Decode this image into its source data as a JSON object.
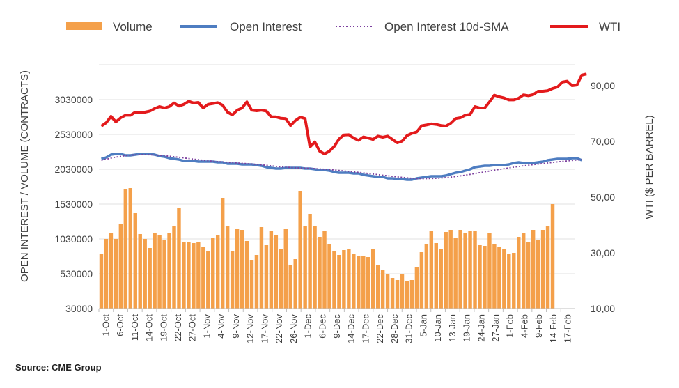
{
  "source": "Source: CME Group",
  "chart_data": {
    "type": "bar+line",
    "title": "",
    "legend": {
      "placement": "top",
      "entries": [
        {
          "name": "Volume",
          "kind": "bar",
          "color": "#F4A04A"
        },
        {
          "name": "Open Interest",
          "kind": "line",
          "color": "#4E7DC1"
        },
        {
          "name": "Open Interest 10d-SMA",
          "kind": "dotted-line",
          "color": "#7B3E9E"
        },
        {
          "name": "WTI",
          "kind": "line",
          "color": "#E31A1C"
        }
      ]
    },
    "y_left": {
      "label": "OPEN INTEREST / VOLUME (CONTRACTS)",
      "range": [
        30000,
        3530000
      ],
      "ticks": [
        "30000",
        "530000",
        "1030000",
        "1530000",
        "2030000",
        "2530000",
        "3030000"
      ]
    },
    "y_right": {
      "label": "WTI ($ PER BARREL)",
      "range": [
        10,
        97.5
      ],
      "ticks": [
        "10,00",
        "30,00",
        "50,00",
        "70,00",
        "90,00"
      ]
    },
    "x_ticks": [
      "1-Oct",
      "6-Oct",
      "11-Oct",
      "14-Oct",
      "19-Oct",
      "22-Oct",
      "27-Oct",
      "1-Nov",
      "4-Nov",
      "9-Nov",
      "12-Nov",
      "17-Nov",
      "22-Nov",
      "26-Nov",
      "1-Dec",
      "6-Dec",
      "9-Dec",
      "14-Dec",
      "17-Dec",
      "22-Dec",
      "28-Dec",
      "31-Dec",
      "5-Jan",
      "10-Jan",
      "13-Jan",
      "19-Jan",
      "24-Jan",
      "27-Jan",
      "1-Feb",
      "4-Feb",
      "9-Feb",
      "14-Feb",
      "17-Feb"
    ],
    "gridlines": true,
    "series": [
      {
        "name": "Volume",
        "axis": "left",
        "type": "bar",
        "values": [
          820000,
          1030000,
          1120000,
          1030000,
          1250000,
          1740000,
          1760000,
          1400000,
          1100000,
          1030000,
          900000,
          1110000,
          1080000,
          1010000,
          1110000,
          1220000,
          1470000,
          990000,
          980000,
          970000,
          980000,
          920000,
          850000,
          1040000,
          1080000,
          1620000,
          1220000,
          850000,
          1170000,
          1160000,
          1000000,
          730000,
          800000,
          1200000,
          940000,
          1140000,
          1080000,
          880000,
          1170000,
          650000,
          740000,
          1720000,
          1220000,
          1390000,
          1220000,
          1060000,
          1140000,
          960000,
          860000,
          800000,
          870000,
          890000,
          820000,
          790000,
          790000,
          770000,
          890000,
          660000,
          590000,
          520000,
          470000,
          440000,
          520000,
          420000,
          440000,
          620000,
          840000,
          960000,
          1140000,
          970000,
          890000,
          1130000,
          1160000,
          1050000,
          1160000,
          1120000,
          1140000,
          1140000,
          950000,
          930000,
          1120000,
          960000,
          910000,
          880000,
          820000,
          830000,
          1060000,
          1110000,
          980000,
          1160000,
          1010000,
          1160000,
          1220000,
          1530000
        ]
      },
      {
        "name": "Open Interest",
        "axis": "left",
        "type": "line",
        "values": [
          2180000,
          2200000,
          2240000,
          2250000,
          2250000,
          2230000,
          2230000,
          2240000,
          2250000,
          2250000,
          2250000,
          2240000,
          2220000,
          2210000,
          2190000,
          2180000,
          2170000,
          2150000,
          2150000,
          2150000,
          2140000,
          2140000,
          2140000,
          2140000,
          2130000,
          2130000,
          2110000,
          2110000,
          2110000,
          2100000,
          2100000,
          2100000,
          2090000,
          2080000,
          2060000,
          2050000,
          2040000,
          2040000,
          2050000,
          2050000,
          2050000,
          2050000,
          2040000,
          2040000,
          2030000,
          2020000,
          2020000,
          2010000,
          1990000,
          1980000,
          1980000,
          1980000,
          1970000,
          1970000,
          1950000,
          1940000,
          1930000,
          1920000,
          1920000,
          1900000,
          1900000,
          1890000,
          1890000,
          1880000,
          1880000,
          1900000,
          1910000,
          1920000,
          1930000,
          1930000,
          1930000,
          1940000,
          1960000,
          1980000,
          1990000,
          2010000,
          2030000,
          2060000,
          2070000,
          2080000,
          2080000,
          2090000,
          2090000,
          2090000,
          2100000,
          2120000,
          2130000,
          2120000,
          2120000,
          2120000,
          2130000,
          2140000,
          2160000,
          2170000,
          2180000,
          2180000,
          2180000,
          2190000,
          2190000,
          2160000
        ]
      },
      {
        "name": "Open Interest 10d-SMA",
        "axis": "left",
        "type": "dotted-line",
        "values": [
          2160000,
          2175000,
          2190000,
          2205000,
          2215000,
          2225000,
          2232000,
          2238000,
          2240000,
          2240000,
          2238000,
          2235000,
          2230000,
          2225000,
          2218000,
          2210000,
          2202000,
          2193000,
          2185000,
          2176000,
          2168000,
          2160000,
          2153000,
          2147000,
          2141000,
          2136000,
          2131000,
          2126000,
          2121000,
          2116000,
          2111000,
          2106000,
          2100000,
          2094000,
          2087000,
          2080000,
          2072000,
          2065000,
          2060000,
          2056000,
          2052000,
          2049000,
          2046000,
          2043000,
          2039000,
          2035000,
          2031000,
          2026000,
          2020000,
          2013000,
          2006000,
          2000000,
          1993000,
          1986000,
          1978000,
          1970000,
          1962000,
          1953000,
          1945000,
          1937000,
          1929000,
          1921000,
          1914000,
          1907000,
          1901000,
          1897000,
          1895000,
          1895000,
          1897000,
          1900000,
          1904000,
          1910000,
          1917000,
          1926000,
          1935000,
          1946000,
          1957000,
          1969000,
          1981000,
          1993000,
          2005000,
          2017000,
          2028000,
          2039000,
          2050000,
          2060000,
          2070000,
          2079000,
          2088000,
          2096000,
          2104000,
          2112000,
          2120000,
          2128000,
          2136000,
          2143000,
          2150000,
          2157000,
          2163000,
          2168000
        ]
      },
      {
        "name": "WTI",
        "axis": "right",
        "type": "line",
        "values": [
          75.5,
          76.7,
          79.0,
          77.0,
          78.5,
          79.4,
          79.4,
          80.5,
          80.5,
          80.5,
          80.9,
          81.8,
          82.5,
          82.0,
          82.5,
          83.8,
          82.7,
          83.3,
          84.4,
          83.8,
          84.0,
          82.0,
          83.3,
          83.6,
          83.9,
          83.0,
          80.5,
          79.5,
          81.2,
          82.0,
          84.2,
          81.2,
          81.0,
          81.2,
          80.9,
          78.8,
          78.8,
          78.3,
          78.2,
          75.7,
          77.5,
          78.7,
          78.2,
          68.0,
          69.8,
          66.5,
          65.5,
          66.5,
          68.2,
          70.9,
          72.3,
          72.4,
          71.2,
          70.4,
          71.6,
          71.2,
          70.7,
          71.9,
          71.5,
          71.9,
          70.7,
          69.5,
          70.1,
          72.1,
          72.9,
          73.4,
          75.6,
          75.9,
          76.3,
          76.1,
          75.7,
          75.5,
          76.5,
          78.2,
          78.5,
          79.4,
          79.7,
          82.5,
          82.0,
          82.0,
          84.2,
          86.6,
          86.0,
          85.6,
          84.9,
          84.9,
          85.5,
          86.7,
          86.4,
          86.8,
          88.0,
          88.0,
          88.2,
          89.0,
          89.5,
          91.3,
          91.6,
          90.0,
          90.2,
          93.8,
          94.2
        ]
      }
    ]
  }
}
